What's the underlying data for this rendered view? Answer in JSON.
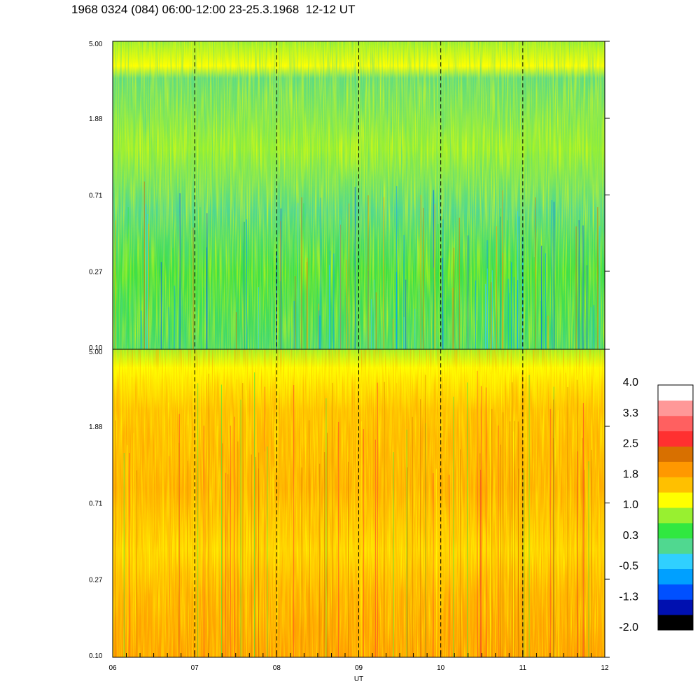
{
  "title": "1968 0324 (084) 06:00-12:00 23-25.3.1968  12-12 UT",
  "chart_data": {
    "type": "heatmap",
    "xlabel": "UT",
    "x_ticks": [
      "06",
      "07",
      "08",
      "09",
      "10",
      "11",
      "12"
    ],
    "xlim": [
      6,
      12
    ],
    "dashed_hour_lines": [
      7,
      8,
      9,
      10,
      11
    ],
    "y_scale": "log",
    "panels": [
      {
        "id": "top",
        "y_ticks": [
          "0.10",
          "0.27",
          "0.71",
          "1.88",
          "5.00"
        ],
        "ylim": [
          0.1,
          5.0
        ],
        "dominant_levels": "green to yellow-green, blue streaks near bottom, yellow band near 5.00"
      },
      {
        "id": "bottom",
        "y_ticks": [
          "0.10",
          "0.27",
          "0.71",
          "1.88",
          "5.00"
        ],
        "ylim": [
          0.1,
          5.0
        ],
        "dominant_levels": "yellow to orange, strongest orange near 0.10-0.27 around 08-09 UT"
      }
    ],
    "colorbar": {
      "labels": [
        "4.0",
        "3.3",
        "2.5",
        "1.8",
        "1.0",
        "0.3",
        "-0.5",
        "-1.3",
        "-2.0"
      ],
      "range": [
        -2.0,
        4.0
      ],
      "colors": [
        "#000000",
        "#0010b0",
        "#0050ff",
        "#00a0ff",
        "#30d0ff",
        "#50d890",
        "#30e840",
        "#98f030",
        "#ffff00",
        "#ffc000",
        "#ff9800",
        "#d87000",
        "#ff3030",
        "#ff6060",
        "#ff9898",
        "#ffffff"
      ]
    }
  }
}
